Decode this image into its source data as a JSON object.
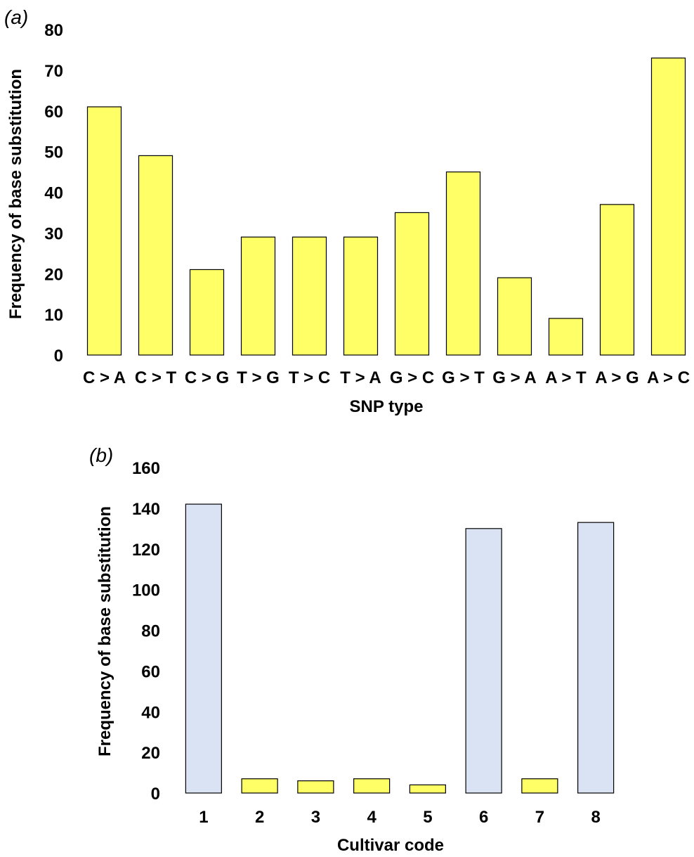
{
  "chart_data": [
    {
      "type": "bar",
      "panel_label": "(a)",
      "categories": [
        "C > A",
        "C > T",
        "C > G",
        "T > G",
        "T > C",
        "T > A",
        "G > C",
        "G > T",
        "G > A",
        "A > T",
        "A > G",
        "A > C"
      ],
      "values": [
        61,
        49,
        21,
        29,
        29,
        29,
        35,
        45,
        19,
        9,
        37,
        73
      ],
      "bar_colors": [
        "#ffff66",
        "#ffff66",
        "#ffff66",
        "#ffff66",
        "#ffff66",
        "#ffff66",
        "#ffff66",
        "#ffff66",
        "#ffff66",
        "#ffff66",
        "#ffff66",
        "#ffff66"
      ],
      "xlabel": "SNP type",
      "ylabel": "Frequency of base substitution",
      "ylim": [
        0,
        80
      ],
      "yticks": [
        0,
        10,
        20,
        30,
        40,
        50,
        60,
        70,
        80
      ],
      "grid": false,
      "legend": "none"
    },
    {
      "type": "bar",
      "panel_label": "(b)",
      "categories": [
        "1",
        "2",
        "3",
        "4",
        "5",
        "6",
        "7",
        "8"
      ],
      "values": [
        142,
        7,
        6,
        7,
        4,
        130,
        7,
        133
      ],
      "bar_colors": [
        "#dae3f3",
        "#ffff66",
        "#ffff66",
        "#ffff66",
        "#ffff66",
        "#dae3f3",
        "#ffff66",
        "#dae3f3"
      ],
      "xlabel": "Cultivar code",
      "ylabel": "Frequency of base substitution",
      "ylim": [
        0,
        160
      ],
      "yticks": [
        0,
        20,
        40,
        60,
        80,
        100,
        120,
        140,
        160
      ],
      "grid": false,
      "legend": "none"
    }
  ]
}
